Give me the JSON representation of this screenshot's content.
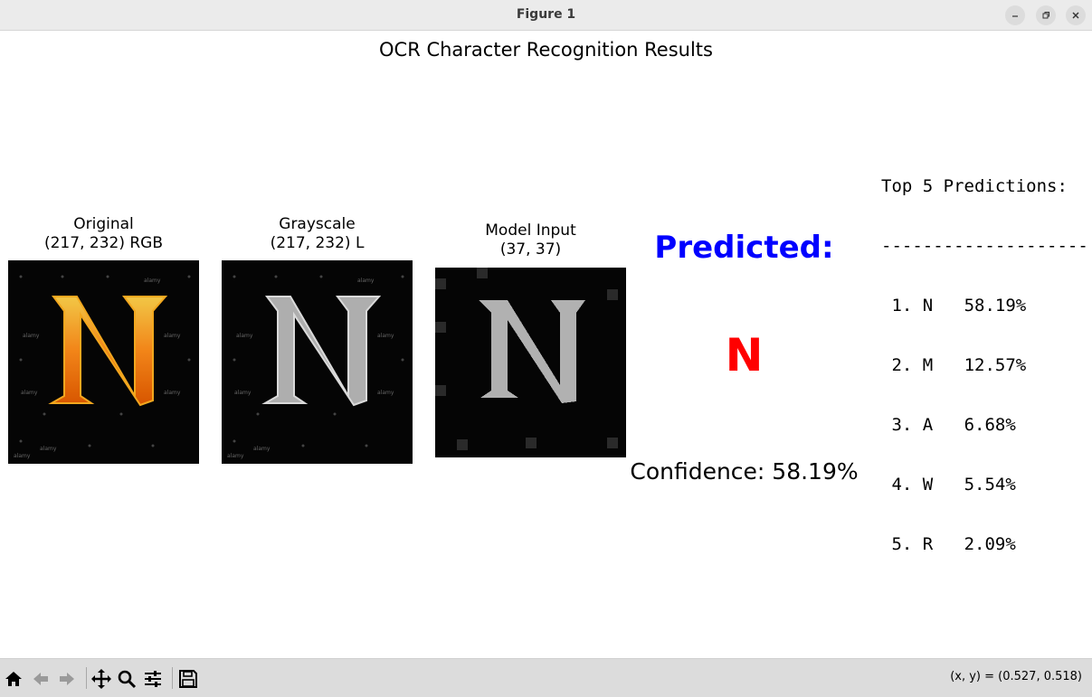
{
  "window": {
    "title": "Figure 1",
    "icons": [
      "minimize-icon",
      "maximize-icon",
      "close-icon"
    ]
  },
  "figure": {
    "title": "OCR Character Recognition Results",
    "panels": [
      {
        "title": "Original",
        "subtitle": "(217, 232) RGB"
      },
      {
        "title": "Grayscale",
        "subtitle": "(217, 232) L"
      },
      {
        "title": "Model Input",
        "subtitle": "(37, 37)"
      }
    ],
    "watermark_text": "alamy",
    "depicted_character": "N",
    "predicted_label": "Predicted:",
    "predicted_char": "N",
    "confidence_text": "Confidence: 58.19%",
    "top5_header": "Top 5 Predictions:",
    "top5_divider": "--------------------",
    "top5": [
      {
        "rank": "1.",
        "char": "N",
        "pct": "58.19%"
      },
      {
        "rank": "2.",
        "char": "M",
        "pct": "12.57%"
      },
      {
        "rank": "3.",
        "char": "A",
        "pct": "6.68%"
      },
      {
        "rank": "4.",
        "char": "W",
        "pct": "5.54%"
      },
      {
        "rank": "5.",
        "char": "R",
        "pct": "2.09%"
      }
    ],
    "colors": {
      "predicted_label": "#0000ff",
      "predicted_char": "#ff0000"
    }
  },
  "toolbar": {
    "icons": [
      "home-icon",
      "back-icon",
      "forward-icon",
      "pan-icon",
      "zoom-icon",
      "configure-subplots-icon",
      "save-icon"
    ],
    "coords": "(x, y) = (0.527, 0.518)"
  }
}
